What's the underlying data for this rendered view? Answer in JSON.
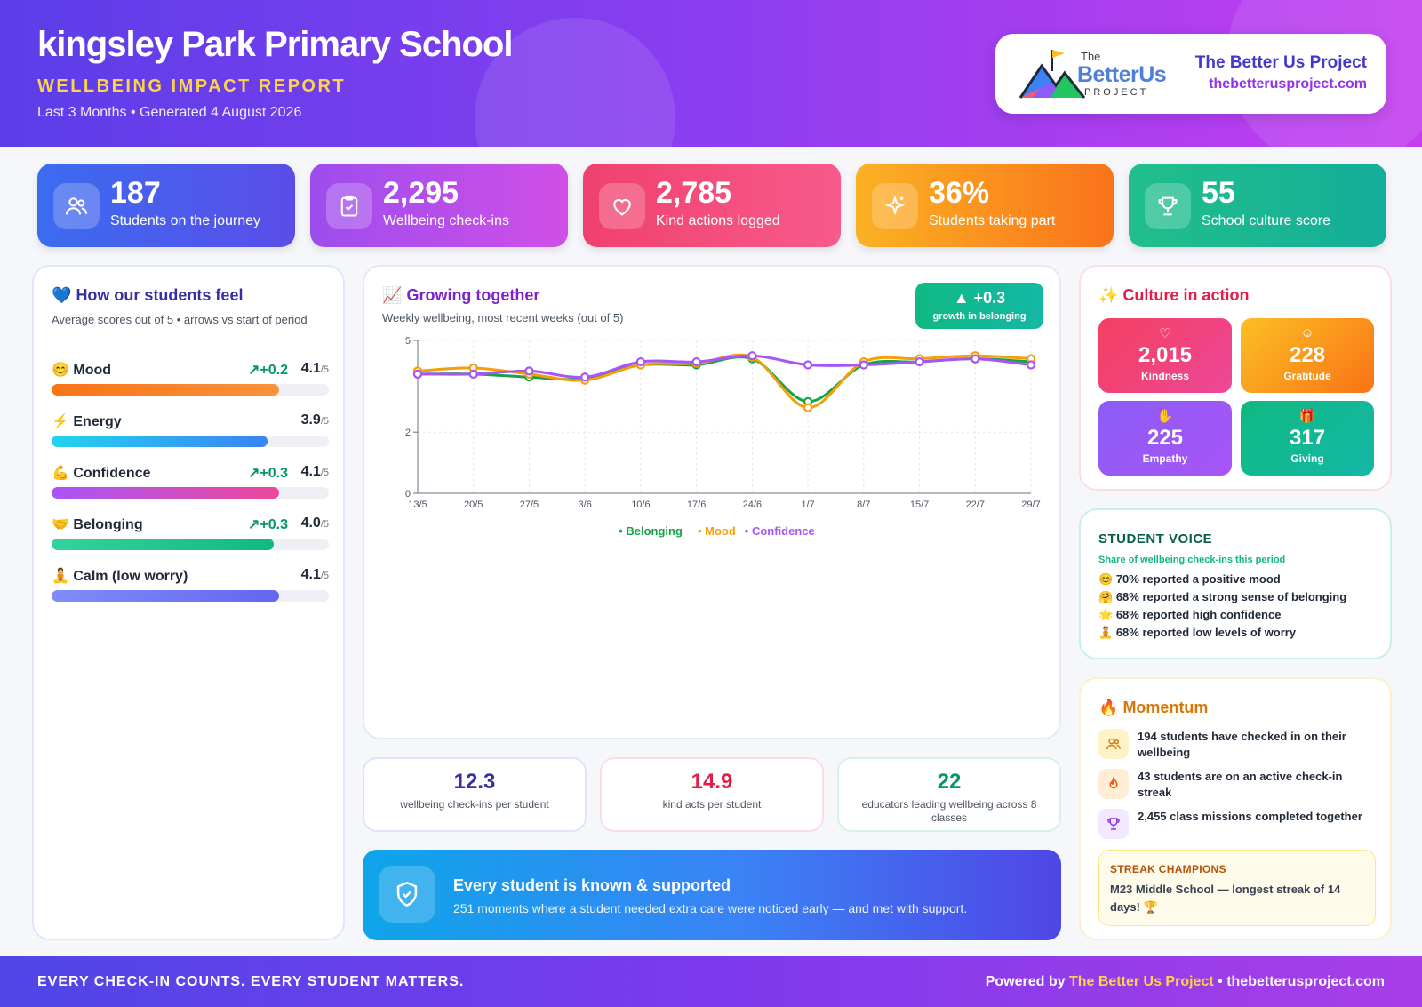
{
  "header": {
    "school_name": "kingsley Park Primary School",
    "report_title": "WELLBEING IMPACT REPORT",
    "period": "Last 3 Months • Generated 4 August 2026",
    "brand": {
      "logo_the": "The",
      "logo_better_us": "BetterUs",
      "logo_project": "PROJECT",
      "name": "The Better Us Project",
      "url": "thebetterusproject.com"
    }
  },
  "stats": [
    {
      "value": "187",
      "label": "Students on the journey",
      "icon": "people-icon"
    },
    {
      "value": "2,295",
      "label": "Wellbeing check-ins",
      "icon": "clipboard-check-icon"
    },
    {
      "value": "2,785",
      "label": "Kind actions logged",
      "icon": "heart-icon"
    },
    {
      "value": "36%",
      "label": "Students taking part",
      "icon": "sparkle-icon"
    },
    {
      "value": "55",
      "label": "School culture score",
      "icon": "trophy-icon"
    }
  ],
  "feel": {
    "emoji": "💙",
    "title": "How our students feel",
    "subtitle": "Average scores out of 5 • arrows vs start of period",
    "score_suffix": "/5",
    "items": [
      {
        "emoji": "😊",
        "name": "Mood",
        "delta": "+0.2",
        "score": "4.1",
        "fill": 0.82
      },
      {
        "emoji": "⚡",
        "name": "Energy",
        "delta": "",
        "score": "3.9",
        "fill": 0.78
      },
      {
        "emoji": "💪",
        "name": "Confidence",
        "delta": "+0.3",
        "score": "4.1",
        "fill": 0.82
      },
      {
        "emoji": "🤝",
        "name": "Belonging",
        "delta": "+0.3",
        "score": "4.0",
        "fill": 0.8
      },
      {
        "emoji": "🧘",
        "name": "Calm (low worry)",
        "delta": "",
        "score": "4.1",
        "fill": 0.82
      }
    ]
  },
  "growing": {
    "emoji": "📈",
    "title": "Growing together",
    "subtitle": "Weekly wellbeing, most recent weeks (out of 5)",
    "badge_value": "▲ +0.3",
    "badge_label": "growth in belonging"
  },
  "chart_data": {
    "type": "line",
    "x": [
      "13/5",
      "20/5",
      "27/5",
      "3/6",
      "10/6",
      "17/6",
      "24/6",
      "1/7",
      "8/7",
      "15/7",
      "22/7",
      "29/7"
    ],
    "yticks": [
      "5",
      "2",
      "0"
    ],
    "ylim": [
      0,
      5
    ],
    "series": [
      {
        "name": "Belonging",
        "color": "#16a34a",
        "values": [
          3.9,
          3.9,
          3.8,
          3.75,
          4.2,
          4.2,
          4.4,
          3.0,
          4.2,
          4.3,
          4.4,
          4.3
        ]
      },
      {
        "name": "Mood",
        "color": "#f59e0b",
        "values": [
          4.0,
          4.1,
          3.9,
          3.7,
          4.2,
          4.25,
          4.45,
          2.8,
          4.3,
          4.4,
          4.5,
          4.4
        ]
      },
      {
        "name": "Confidence",
        "color": "#a855f7",
        "values": [
          3.9,
          3.9,
          4.0,
          3.8,
          4.3,
          4.3,
          4.5,
          4.2,
          4.2,
          4.3,
          4.4,
          4.2
        ]
      }
    ]
  },
  "mini_stats": [
    {
      "value": "12.3",
      "label": "wellbeing check-ins per student",
      "color": "#3730a3"
    },
    {
      "value": "14.9",
      "label": "kind acts per student",
      "color": "#e11d48"
    },
    {
      "value": "22",
      "label": "educators leading wellbeing across 8 classes",
      "color": "#059669"
    }
  ],
  "support": {
    "title": "Every student is known & supported",
    "text": "251 moments where a student needed extra care were noticed early — and met with support."
  },
  "culture": {
    "emoji": "✨",
    "title": "Culture in action",
    "tiles": [
      {
        "icon": "♡",
        "value": "2,015",
        "label": "Kindness"
      },
      {
        "icon": "☺",
        "value": "228",
        "label": "Gratitude"
      },
      {
        "icon": "✋",
        "value": "225",
        "label": "Empathy"
      },
      {
        "icon": "🎁",
        "value": "317",
        "label": "Giving"
      }
    ]
  },
  "voice": {
    "title": "STUDENT VOICE",
    "subtitle": "Share of wellbeing check-ins this period",
    "items": [
      {
        "emoji": "😊",
        "text": "70% reported a positive mood"
      },
      {
        "emoji": "🤗",
        "text": "68% reported a strong sense of belonging"
      },
      {
        "emoji": "🌟",
        "text": "68% reported high confidence"
      },
      {
        "emoji": "🧘",
        "text": "68% reported low levels of worry"
      }
    ]
  },
  "momentum": {
    "emoji": "🔥",
    "title": "Momentum",
    "items": [
      {
        "text": "194 students have checked in on their wellbeing"
      },
      {
        "text": "43 students are on an active check-in streak"
      },
      {
        "text": "2,455 class missions completed together"
      }
    ],
    "champions_title": "STREAK CHAMPIONS",
    "champions_text": "M23 Middle School — longest streak of 14 days! 🏆"
  },
  "footer": {
    "tagline": "EVERY CHECK-IN COUNTS. EVERY STUDENT MATTERS.",
    "powered_by": "Powered by",
    "brand": "The Better Us Project",
    "sep": "•",
    "url": "thebetterusproject.com"
  }
}
